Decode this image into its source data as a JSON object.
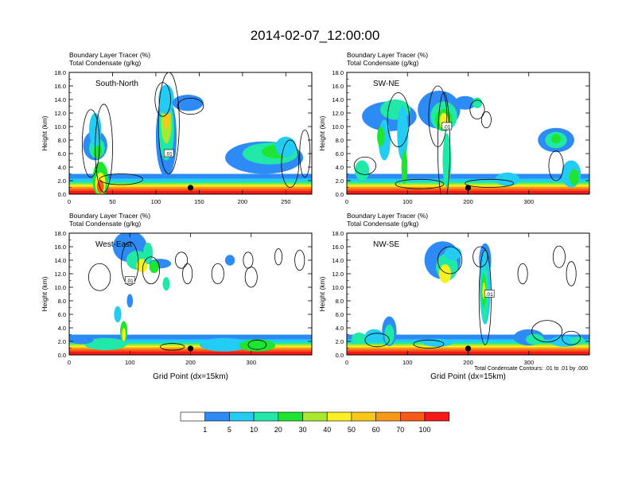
{
  "main_title": "2014-02-07_12:00:00",
  "colorbar": {
    "colors": [
      "#ffffff",
      "#2e8bf5",
      "#22ccf2",
      "#20e8a8",
      "#1ee630",
      "#a8e82e",
      "#f8f020",
      "#f8c818",
      "#f89818",
      "#f85818",
      "#f81818"
    ],
    "labels": [
      "1",
      "5",
      "10",
      "20",
      "30",
      "40",
      "50",
      "60",
      "70",
      "100"
    ]
  },
  "chart_data": [
    {
      "type": "contour",
      "panel": "South-North",
      "title_line1": "Boundary Layer Tracer   (%)",
      "title_line2": "Total Condensate   (g/kg)",
      "ylabel": "Height (km)",
      "xlabel": "",
      "xlim": [
        0,
        280
      ],
      "ylim": [
        0,
        18
      ],
      "xticks": [
        "0",
        "50",
        "100",
        "150",
        "200",
        "250"
      ],
      "xtick_values": [
        0,
        50,
        100,
        150,
        200,
        250
      ],
      "yticks": [
        "0.0",
        "2.0",
        "4.0",
        "6.0",
        "8.0",
        "10.0",
        "12.0",
        "14.0",
        "16.0",
        "18.0"
      ],
      "marker_x": 140,
      "contour_label": ".01",
      "contour_label_pos": [
        115,
        6
      ],
      "footnote": ""
    },
    {
      "type": "contour",
      "panel": "SW-NE",
      "title_line1": "Boundary Layer Tracer   (%)",
      "title_line2": "Total Condensate   (g/kg)",
      "ylabel": "Height (km)",
      "xlabel": "",
      "xlim": [
        0,
        400
      ],
      "ylim": [
        0,
        18
      ],
      "xticks": [
        "0",
        "100",
        "200",
        "300"
      ],
      "xtick_values": [
        0,
        100,
        200,
        300
      ],
      "yticks": [
        "0.0",
        "2.0",
        "4.0",
        "6.0",
        "8.0",
        "10.0",
        "12.0",
        "14.0",
        "16.0",
        "18.0"
      ],
      "marker_x": 200,
      "contour_label": ".01",
      "contour_label_pos": [
        165,
        10
      ],
      "footnote": ""
    },
    {
      "type": "contour",
      "panel": "West-East",
      "title_line1": "Boundary Layer Tracer   (%)",
      "title_line2": "Total Condensate   (g/kg)",
      "ylabel": "Height (km)",
      "xlabel": "Grid Point (dx=15km)",
      "xlim": [
        0,
        400
      ],
      "ylim": [
        0,
        18
      ],
      "xticks": [
        "0",
        "100",
        "200",
        "300"
      ],
      "xtick_values": [
        0,
        100,
        200,
        300
      ],
      "yticks": [
        "0.0",
        "2.0",
        "4.0",
        "6.0",
        "8.0",
        "10.0",
        "12.0",
        "14.0",
        "16.0",
        "18.0"
      ],
      "marker_x": 200,
      "contour_label": ".01",
      "contour_label_pos": [
        100,
        11
      ],
      "footnote": ""
    },
    {
      "type": "contour",
      "panel": "NW-SE",
      "title_line1": "Boundary Layer Tracer   (%)",
      "title_line2": "Total Condensate   (g/kg)",
      "ylabel": "Height (km)",
      "xlabel": "Grid Point (dx=15km)",
      "xlim": [
        0,
        400
      ],
      "ylim": [
        0,
        18
      ],
      "xticks": [
        "0",
        "100",
        "200",
        "300"
      ],
      "xtick_values": [
        0,
        100,
        200,
        300
      ],
      "yticks": [
        "0.0",
        "2.0",
        "4.0",
        "6.0",
        "8.0",
        "10.0",
        "12.0",
        "14.0",
        "16.0",
        "18.0"
      ],
      "marker_x": 200,
      "contour_label": ".01",
      "contour_label_pos": [
        235,
        9
      ],
      "footnote": "Total Condensate Contours: .01 to .01 by .000"
    }
  ]
}
